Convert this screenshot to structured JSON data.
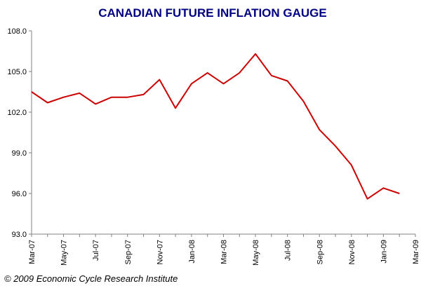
{
  "chart_data": {
    "type": "line",
    "title": "CANADIAN FUTURE INFLATION GAUGE",
    "xlabel": "",
    "ylabel": "",
    "ylim": [
      93.0,
      108.0
    ],
    "yticks": [
      "93.0",
      "96.0",
      "99.0",
      "102.0",
      "105.0",
      "108.0"
    ],
    "xtick_labels": [
      "Mar-07",
      "May-07",
      "Jul-07",
      "Sep-07",
      "Nov-07",
      "Jan-08",
      "Mar-08",
      "May-08",
      "Jul-08",
      "Sep-08",
      "Nov-08",
      "Jan-09",
      "Mar-09"
    ],
    "grid": false,
    "legend": "none",
    "series": [
      {
        "x": [
          "Mar-07",
          "Apr-07",
          "May-07",
          "Jun-07",
          "Jul-07",
          "Aug-07",
          "Sep-07",
          "Oct-07",
          "Nov-07",
          "Dec-07",
          "Jan-08",
          "Feb-08",
          "Mar-08",
          "Apr-08",
          "May-08",
          "Jun-08",
          "Jul-08",
          "Aug-08",
          "Sep-08",
          "Oct-08",
          "Nov-08",
          "Dec-08",
          "Jan-09",
          "Feb-09"
        ],
        "values": [
          103.5,
          102.7,
          103.1,
          103.4,
          102.6,
          103.1,
          103.1,
          103.3,
          104.4,
          102.3,
          104.1,
          104.9,
          104.1,
          104.9,
          106.3,
          104.7,
          104.3,
          102.8,
          100.7,
          99.5,
          98.1,
          95.6,
          96.4,
          96.0
        ]
      }
    ],
    "colors": {
      "line": "#cc0000",
      "axis": "#808080",
      "title": "#000080"
    }
  },
  "footer": {
    "copyright": "© 2009 Economic Cycle Research Institute"
  }
}
